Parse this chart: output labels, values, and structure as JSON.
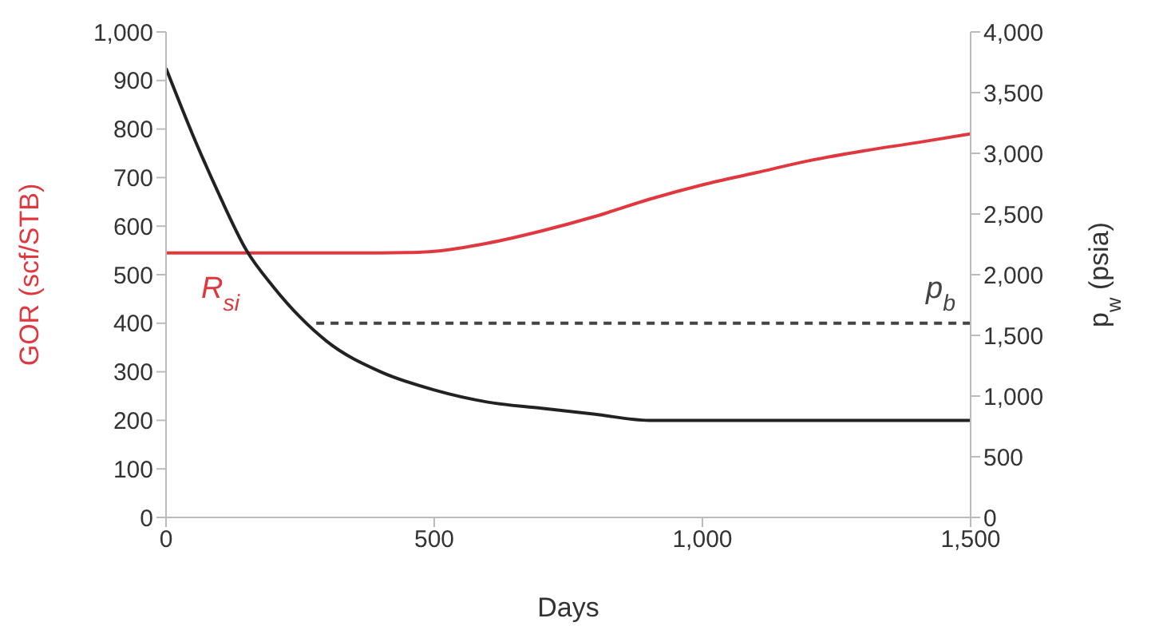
{
  "chart_data": {
    "type": "line",
    "xlabel": "Days",
    "ylabel": "GOR (scf/STB)",
    "y2label": "p$_{w}$ (psia)",
    "xlim": [
      0,
      1500
    ],
    "xticks": [
      0,
      500,
      {
        "value": 1000,
        "label": "1,000"
      },
      {
        "value": 1500,
        "label": "1,500"
      }
    ],
    "ylim": [
      0,
      1000
    ],
    "yticks": [
      0,
      100,
      200,
      300,
      400,
      500,
      600,
      700,
      800,
      900,
      {
        "value": 1000,
        "label": "1,000"
      }
    ],
    "y2lim": [
      0,
      4000
    ],
    "y2ticks": [
      0,
      500,
      {
        "value": 1000,
        "label": "1,000"
      },
      {
        "value": 1500,
        "label": "1,500"
      },
      {
        "value": 2000,
        "label": "2,000"
      },
      {
        "value": 2500,
        "label": "2,500"
      },
      {
        "value": 3000,
        "label": "3,000"
      },
      {
        "value": 3500,
        "label": "3,500"
      },
      {
        "value": 4000,
        "label": "4,000"
      }
    ],
    "marker": "none",
    "series": [
      {
        "name": "R$_{si}$",
        "color": "#e0383e",
        "axis": "y",
        "line_style": "solid",
        "x": [
          0,
          100,
          200,
          300,
          400,
          470,
          500,
          600,
          700,
          800,
          900,
          1000,
          1100,
          1200,
          1300,
          1400,
          1500
        ],
        "values": [
          545,
          545,
          545,
          545,
          545,
          546,
          548,
          565,
          590,
          620,
          655,
          685,
          710,
          735,
          755,
          772,
          790
        ]
      },
      {
        "color": "#222222",
        "axis": "y2",
        "line_style": "solid",
        "x": [
          0,
          50,
          100,
          150,
          200,
          250,
          300,
          400,
          500,
          600,
          700,
          800,
          900,
          1000,
          1200,
          1500
        ],
        "values": [
          3700,
          3150,
          2650,
          2200,
          1900,
          1650,
          1450,
          1200,
          1050,
          950,
          900,
          850,
          800,
          800,
          800,
          800
        ]
      },
      {
        "name": "p$_{b}$",
        "color": "#444444",
        "axis": "y2",
        "line_style": "dashed",
        "x": [
          280,
          1500
        ],
        "values": [
          1600,
          1600
        ]
      }
    ]
  }
}
